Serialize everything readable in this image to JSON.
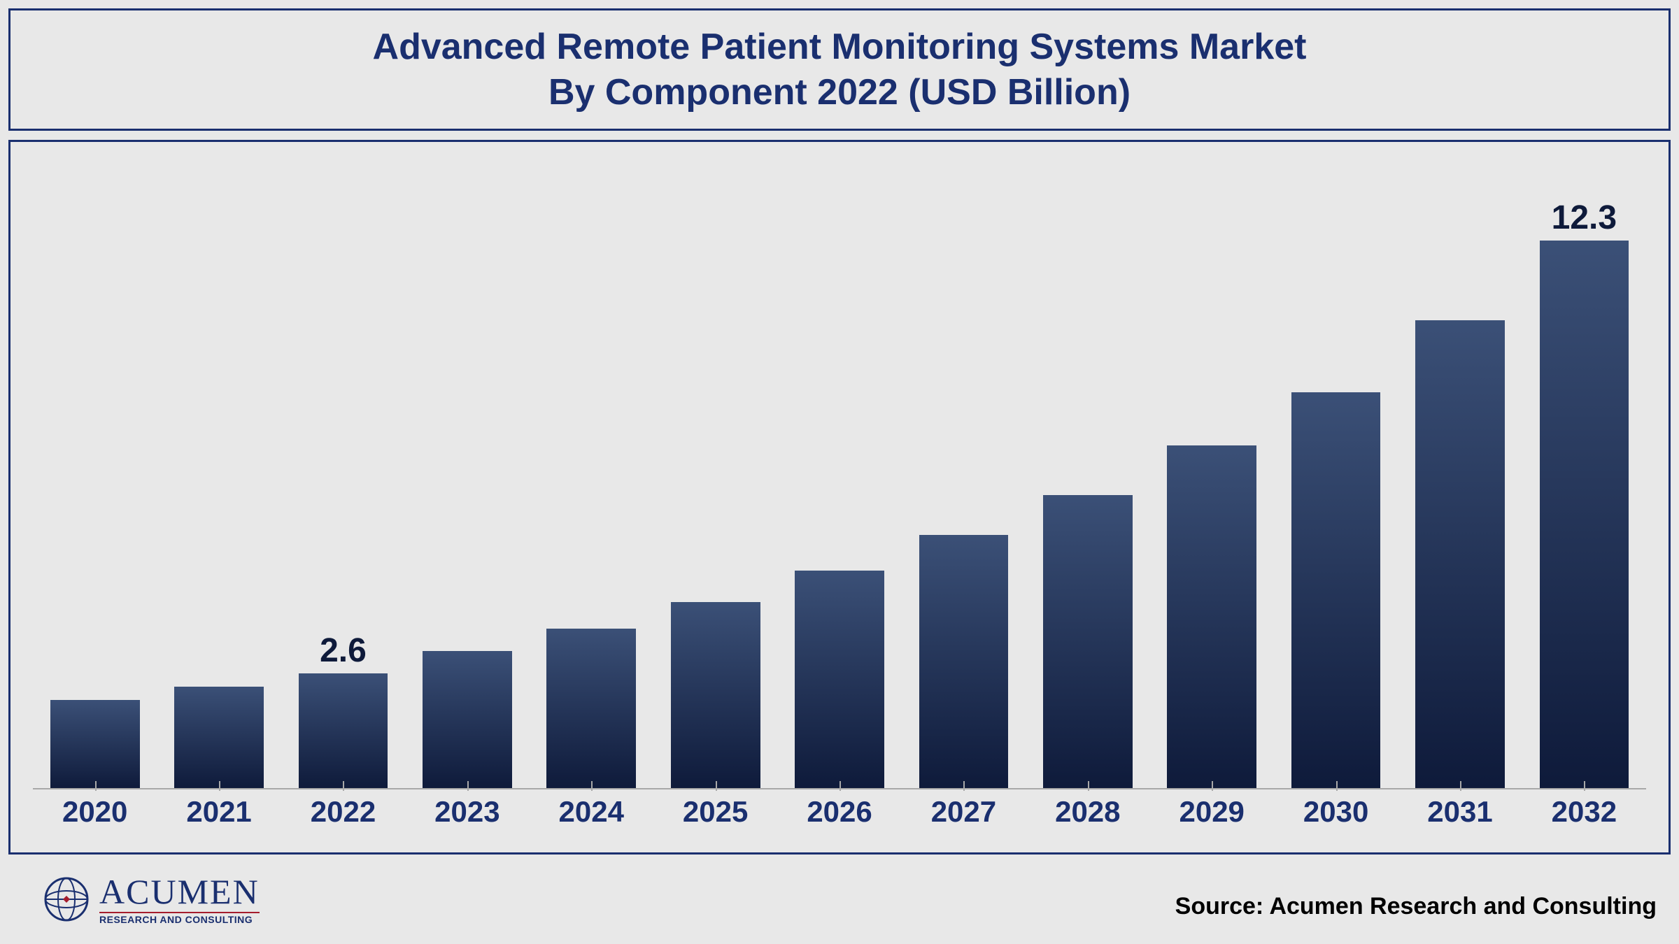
{
  "title": {
    "line1": "Advanced Remote Patient Monitoring Systems Market",
    "line2": "By Component 2022 (USD Billion)",
    "fontsize": 52,
    "color": "#1a2f6f",
    "border_color": "#1a2f6f"
  },
  "chart": {
    "type": "bar",
    "categories": [
      "2020",
      "2021",
      "2022",
      "2023",
      "2024",
      "2025",
      "2026",
      "2027",
      "2028",
      "2029",
      "2030",
      "2031",
      "2032"
    ],
    "values": [
      2.0,
      2.3,
      2.6,
      3.1,
      3.6,
      4.2,
      4.9,
      5.7,
      6.6,
      7.7,
      8.9,
      10.5,
      12.3
    ],
    "value_labels": {
      "2": "2.6",
      "12": "12.3"
    },
    "ylim": [
      0,
      14.5
    ],
    "bar_gradient_top": "#3b5077",
    "bar_gradient_bottom": "#0e1a3a",
    "bar_width_pct": 72,
    "value_label_fontsize": 48,
    "value_label_color": "#0e1a3a",
    "tick_fontsize": 42,
    "tick_color": "#1a2f6f",
    "baseline_color": "#a8a8a8",
    "background_color": "#e8e8e8",
    "border_color": "#1a2f6f"
  },
  "logo": {
    "main": "ACUMEN",
    "sub": "RESEARCH AND CONSULTING",
    "main_fontsize": 50,
    "sub_fontsize": 14,
    "main_color": "#1a2f6f",
    "accent_color": "#a51d2d"
  },
  "source": {
    "text": "Source: Acumen Research and Consulting",
    "fontsize": 34,
    "color": "#000000"
  }
}
